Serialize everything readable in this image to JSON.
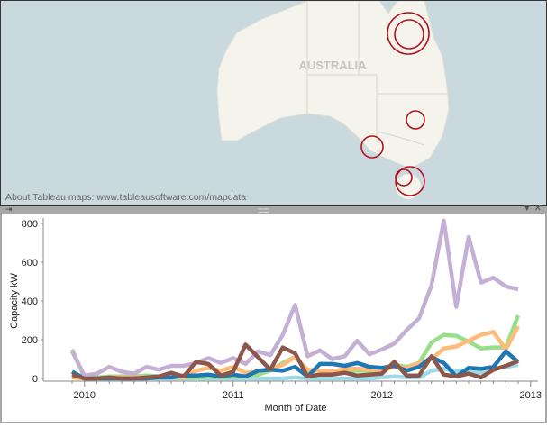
{
  "map": {
    "label": "AUSTRALIA",
    "attribution": "About Tableau maps: www.tableausoftware.com/mapdata",
    "marker_color": "#b3121f"
  },
  "toolbar": {
    "pin_icon": "pin-icon",
    "grip_icon": "drag-handle-icon",
    "menu_icon": "dropdown-arrow-icon",
    "close_icon": "close-icon"
  },
  "chart_data": {
    "type": "line",
    "title": "",
    "xlabel": "Month of Date",
    "ylabel": "Capacity kW",
    "ylim": [
      0,
      850
    ],
    "yticks": [
      "0",
      "200",
      "400",
      "600",
      "800"
    ],
    "xticks": [
      "2010",
      "2011",
      "2012",
      "2013"
    ],
    "x": [
      "2009-12",
      "2010-01",
      "2010-02",
      "2010-03",
      "2010-04",
      "2010-05",
      "2010-06",
      "2010-07",
      "2010-08",
      "2010-09",
      "2010-10",
      "2010-11",
      "2010-12",
      "2011-01",
      "2011-02",
      "2011-03",
      "2011-04",
      "2011-05",
      "2011-06",
      "2011-07",
      "2011-08",
      "2011-09",
      "2011-10",
      "2011-11",
      "2011-12",
      "2012-01",
      "2012-02",
      "2012-03",
      "2012-04",
      "2012-05",
      "2012-06",
      "2012-07",
      "2012-08",
      "2012-09",
      "2012-10",
      "2012-11",
      "2012-12"
    ],
    "grid": false,
    "series": [
      {
        "color": "#9edae5",
        "values": [
          5,
          0,
          0,
          0,
          0,
          0,
          0,
          0,
          0,
          0,
          0,
          0,
          0,
          0,
          0,
          0,
          0,
          0,
          5,
          0,
          0,
          0,
          0,
          0,
          0,
          5,
          10,
          5,
          5,
          40,
          50,
          40,
          40,
          30,
          50,
          60,
          70
        ]
      },
      {
        "color": "#98df8a",
        "values": [
          150,
          5,
          5,
          10,
          10,
          10,
          15,
          10,
          5,
          5,
          5,
          10,
          5,
          10,
          10,
          20,
          40,
          80,
          110,
          40,
          40,
          35,
          40,
          40,
          40,
          40,
          70,
          60,
          80,
          185,
          225,
          220,
          190,
          155,
          160,
          160,
          325
        ]
      },
      {
        "color": "#ffbb78",
        "values": [
          5,
          0,
          0,
          5,
          5,
          5,
          5,
          5,
          10,
          5,
          40,
          55,
          40,
          60,
          30,
          35,
          50,
          70,
          110,
          45,
          40,
          35,
          50,
          50,
          45,
          45,
          60,
          55,
          80,
          100,
          155,
          165,
          195,
          225,
          240,
          150,
          270
        ]
      },
      {
        "color": "#1f77b4",
        "values": [
          35,
          0,
          0,
          0,
          0,
          0,
          0,
          5,
          5,
          15,
          15,
          20,
          10,
          20,
          10,
          40,
          45,
          40,
          60,
          10,
          75,
          75,
          65,
          80,
          60,
          55,
          65,
          40,
          60,
          110,
          80,
          10,
          55,
          50,
          60,
          140,
          85
        ]
      },
      {
        "color": "#c5b0d5",
        "values": [
          140,
          15,
          25,
          60,
          35,
          25,
          60,
          45,
          65,
          65,
          80,
          105,
          80,
          105,
          75,
          140,
          120,
          225,
          380,
          115,
          145,
          100,
          115,
          195,
          125,
          150,
          180,
          250,
          310,
          480,
          815,
          370,
          730,
          495,
          520,
          475,
          460
        ]
      },
      {
        "color": "#8c564b",
        "values": [
          20,
          0,
          0,
          5,
          0,
          0,
          5,
          10,
          30,
          10,
          85,
          75,
          15,
          35,
          175,
          110,
          45,
          160,
          130,
          10,
          20,
          20,
          30,
          15,
          20,
          25,
          85,
          15,
          15,
          115,
          20,
          10,
          25,
          5,
          45,
          65,
          90
        ]
      }
    ]
  }
}
